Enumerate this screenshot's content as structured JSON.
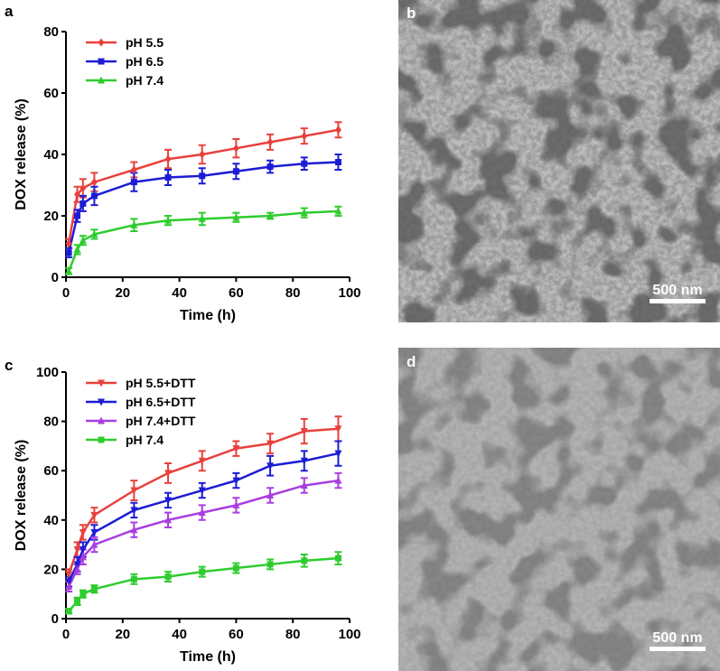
{
  "chart_data": [
    {
      "type": "line",
      "panel_label": "a",
      "x_label": "Time (h)",
      "y_label": "DOX release (%)",
      "xlim": [
        0,
        100
      ],
      "xticks": [
        0,
        20,
        40,
        60,
        80,
        100
      ],
      "ylim": [
        0,
        80
      ],
      "yticks": [
        0,
        20,
        40,
        60,
        80
      ],
      "x": [
        1,
        4,
        6,
        10,
        24,
        36,
        48,
        60,
        72,
        84,
        96
      ],
      "series": [
        {
          "name": "pH 5.5",
          "color": "#e8413c",
          "marker": "diamond",
          "values": [
            11,
            27,
            29,
            31,
            35,
            38.5,
            40,
            42,
            44,
            46,
            48
          ],
          "errors": [
            1.5,
            2.5,
            3,
            3,
            2.5,
            3,
            3,
            3,
            2.5,
            2.5,
            2.5
          ]
        },
        {
          "name": "pH 6.5",
          "color": "#1c1cd6",
          "marker": "square",
          "values": [
            8,
            20,
            24,
            26.5,
            31,
            32.5,
            33,
            34.5,
            36,
            37,
            37.5
          ],
          "errors": [
            1.5,
            2,
            2.5,
            3,
            3,
            2.5,
            2.5,
            2.5,
            2,
            2,
            2.5
          ]
        },
        {
          "name": "pH 7.4",
          "color": "#2ecc2e",
          "marker": "triangle",
          "values": [
            2,
            9,
            12,
            14,
            17,
            18.5,
            19,
            19.5,
            20,
            21,
            21.5
          ],
          "errors": [
            1,
            1.5,
            1.5,
            1.5,
            2,
            1.5,
            2,
            1.5,
            1,
            1.5,
            1.5
          ]
        }
      ]
    },
    {
      "type": "line",
      "panel_label": "c",
      "x_label": "Time (h)",
      "y_label": "DOX release (%)",
      "xlim": [
        0,
        100
      ],
      "xticks": [
        0,
        20,
        40,
        60,
        80,
        100
      ],
      "ylim": [
        0,
        100
      ],
      "yticks": [
        0,
        20,
        40,
        60,
        80,
        100
      ],
      "x": [
        1,
        4,
        6,
        10,
        24,
        36,
        48,
        60,
        72,
        84,
        96
      ],
      "series": [
        {
          "name": "pH 5.5+DTT",
          "color": "#e8413c",
          "marker": "triangle-down",
          "values": [
            18,
            28,
            35,
            42,
            52,
            59,
            64,
            69,
            71,
            76,
            77
          ],
          "errors": [
            2,
            3,
            3,
            3,
            4,
            4,
            4,
            3,
            4,
            5,
            5
          ]
        },
        {
          "name": "pH 6.5+DTT",
          "color": "#1c1cd6",
          "marker": "triangle-down",
          "values": [
            15,
            22,
            28,
            35,
            44,
            48,
            52,
            56,
            62,
            64,
            67
          ],
          "errors": [
            2,
            3,
            3,
            3,
            3,
            3,
            3,
            3,
            4,
            4,
            5
          ]
        },
        {
          "name": "pH 7.4+DTT",
          "color": "#a83ee0",
          "marker": "triangle",
          "values": [
            13,
            20,
            25,
            30,
            36,
            40,
            43,
            46,
            50,
            54,
            56
          ],
          "errors": [
            2,
            2,
            3,
            3,
            3,
            3,
            3,
            3,
            3,
            3,
            3
          ]
        },
        {
          "name": "pH 7.4",
          "color": "#2ecc2e",
          "marker": "square",
          "values": [
            3,
            7,
            10,
            12,
            16,
            17,
            19,
            20.5,
            22,
            23.5,
            24.5
          ],
          "errors": [
            1,
            1.5,
            1.5,
            1.5,
            2,
            2,
            2,
            2,
            2,
            2.5,
            2.5
          ]
        }
      ]
    }
  ],
  "images": [
    {
      "label": "b",
      "scale_bar": "500 nm"
    },
    {
      "label": "d",
      "scale_bar": "500 nm"
    }
  ]
}
